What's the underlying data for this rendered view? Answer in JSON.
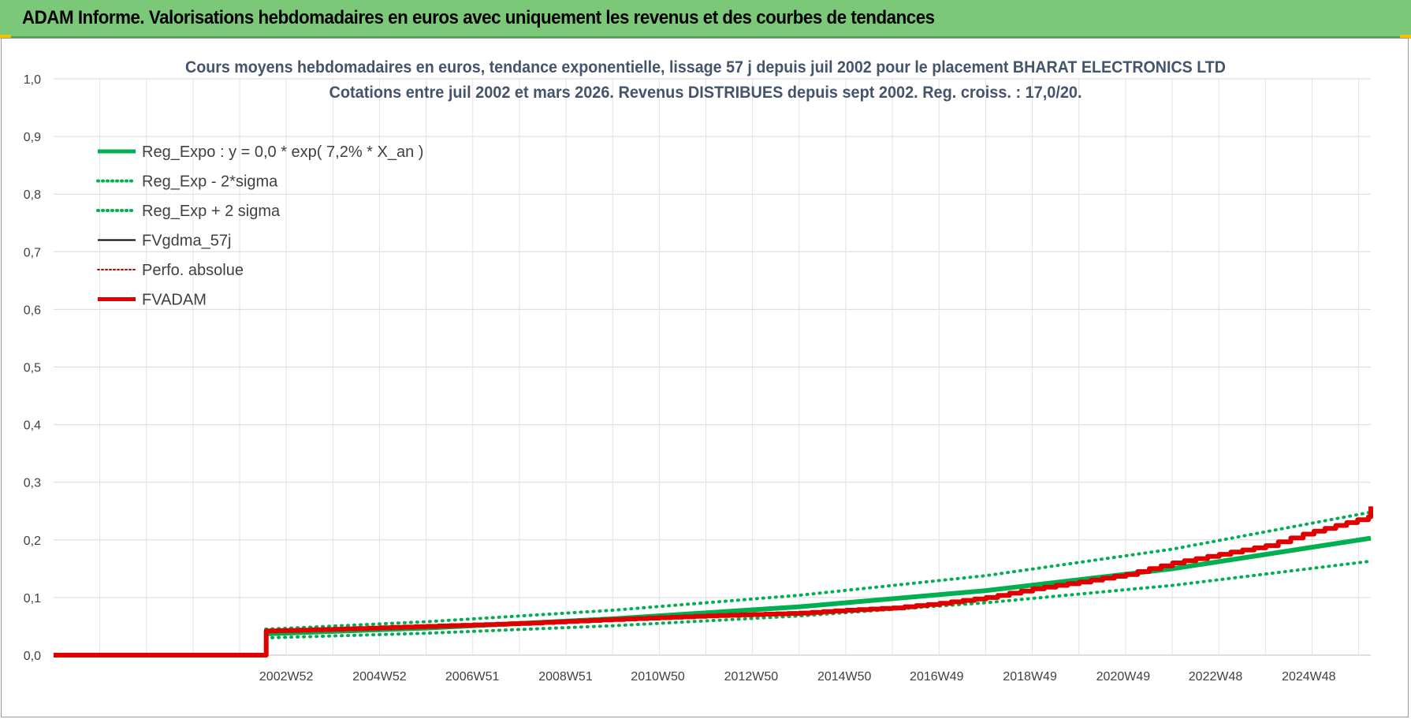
{
  "banner": {
    "title": "ADAM Informe. Valorisations hebdomadaires en euros avec uniquement les revenus et des courbes de tendances"
  },
  "chart_data": {
    "type": "line",
    "title": "Cours moyens hebdomadaires en euros, tendance exponentielle, lissage 57 j depuis juil 2002 pour le placement BHARAT ELECTRONICS LTD",
    "subtitle": "Cotations entre juil 2002 et mars 2026. Revenus DISTRIBUES depuis sept 2002. Reg. croiss. : 17,0/20.",
    "ylim": [
      0,
      1.0
    ],
    "y_ticks": [
      "0,0",
      "0,1",
      "0,2",
      "0,3",
      "0,4",
      "0,5",
      "0,6",
      "0,7",
      "0,8",
      "0,9",
      "1,0"
    ],
    "x_range": [
      1998.0,
      2026.25
    ],
    "x_ticks": [
      {
        "label": "2002W52",
        "x": 2002.99
      },
      {
        "label": "2004W52",
        "x": 2004.99
      },
      {
        "label": "2006W51",
        "x": 2006.98
      },
      {
        "label": "2008W51",
        "x": 2008.98
      },
      {
        "label": "2010W50",
        "x": 2010.96
      },
      {
        "label": "2012W50",
        "x": 2012.96
      },
      {
        "label": "2014W50",
        "x": 2014.96
      },
      {
        "label": "2016W49",
        "x": 2016.94
      },
      {
        "label": "2018W49",
        "x": 2018.94
      },
      {
        "label": "2020W49",
        "x": 2020.94
      },
      {
        "label": "2022W48",
        "x": 2022.92
      },
      {
        "label": "2024W48",
        "x": 2024.92
      }
    ],
    "grid": true,
    "legend_position": "top-left",
    "series": [
      {
        "name": "Reg_Expo : y = 0,0 * exp( 7,2% *  X_an )",
        "color": "#00b050",
        "style": "solid-thick",
        "x": [
          2002.55,
          2006,
          2010,
          2014,
          2018,
          2022,
          2026.25
        ],
        "y": [
          0.037,
          0.047,
          0.063,
          0.084,
          0.112,
          0.15,
          0.203
        ]
      },
      {
        "name": "Reg_Exp - 2*sigma",
        "color": "#00b050",
        "style": "dotted",
        "x": [
          2002.55,
          2006,
          2010,
          2014,
          2018,
          2022,
          2026.25
        ],
        "y": [
          0.03,
          0.038,
          0.051,
          0.068,
          0.091,
          0.121,
          0.163
        ]
      },
      {
        "name": "Reg_Exp + 2 sigma",
        "color": "#00b050",
        "style": "dotted",
        "x": [
          2002.55,
          2006,
          2010,
          2014,
          2018,
          2022,
          2026.25
        ],
        "y": [
          0.045,
          0.058,
          0.078,
          0.104,
          0.138,
          0.184,
          0.248
        ]
      },
      {
        "name": "FVgdma_57j",
        "color": "#000000",
        "style": "solid",
        "x": [
          1998.0,
          2002.55,
          2002.56,
          2004,
          2006,
          2008,
          2010,
          2012,
          2014,
          2015,
          2016,
          2017,
          2018,
          2019,
          2020,
          2021,
          2022,
          2023,
          2024,
          2024.8,
          2025.5,
          2026.2,
          2026.25
        ],
        "y": [
          0.0,
          0.0,
          0.042,
          0.045,
          0.05,
          0.055,
          0.062,
          0.068,
          0.073,
          0.078,
          0.082,
          0.09,
          0.1,
          0.115,
          0.127,
          0.14,
          0.16,
          0.175,
          0.19,
          0.21,
          0.225,
          0.24,
          0.258
        ]
      },
      {
        "name": "Perfo. absolue",
        "color": "#c00000",
        "style": "dotted-thin",
        "x": [],
        "y": []
      },
      {
        "name": "FVADAM",
        "color": "#e00000",
        "style": "solid-thick",
        "x": [
          1998.0,
          2002.55,
          2002.56,
          2004,
          2006,
          2008,
          2010,
          2012,
          2014,
          2015,
          2016,
          2017,
          2018,
          2019,
          2020,
          2021,
          2022,
          2023,
          2024,
          2024.8,
          2025.5,
          2026.2,
          2026.25
        ],
        "y": [
          0.0,
          0.0,
          0.042,
          0.045,
          0.05,
          0.055,
          0.062,
          0.068,
          0.073,
          0.078,
          0.082,
          0.09,
          0.1,
          0.115,
          0.127,
          0.14,
          0.16,
          0.175,
          0.19,
          0.21,
          0.225,
          0.24,
          0.258
        ]
      }
    ]
  }
}
